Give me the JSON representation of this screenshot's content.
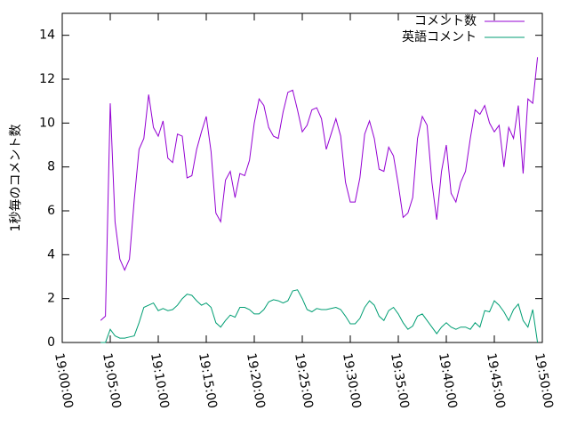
{
  "chart_data": {
    "type": "line",
    "y_label": "1秒毎のコメント数",
    "x": [
      "19:04:00",
      "19:04:30",
      "19:05:00",
      "19:05:30",
      "19:06:00",
      "19:06:30",
      "19:07:00",
      "19:07:30",
      "19:08:00",
      "19:08:30",
      "19:09:00",
      "19:09:30",
      "19:10:00",
      "19:10:30",
      "19:11:00",
      "19:11:30",
      "19:12:00",
      "19:12:30",
      "19:13:00",
      "19:13:30",
      "19:14:00",
      "19:14:30",
      "19:15:00",
      "19:15:30",
      "19:16:00",
      "19:16:30",
      "19:17:00",
      "19:17:30",
      "19:18:00",
      "19:18:30",
      "19:19:00",
      "19:19:30",
      "19:20:00",
      "19:20:30",
      "19:21:00",
      "19:21:30",
      "19:22:00",
      "19:22:30",
      "19:23:00",
      "19:23:30",
      "19:24:00",
      "19:24:30",
      "19:25:00",
      "19:25:30",
      "19:26:00",
      "19:26:30",
      "19:27:00",
      "19:27:30",
      "19:28:00",
      "19:28:30",
      "19:29:00",
      "19:29:30",
      "19:30:00",
      "19:30:30",
      "19:31:00",
      "19:31:30",
      "19:32:00",
      "19:32:30",
      "19:33:00",
      "19:33:30",
      "19:34:00",
      "19:34:30",
      "19:35:00",
      "19:35:30",
      "19:36:00",
      "19:36:30",
      "19:37:00",
      "19:37:30",
      "19:38:00",
      "19:38:30",
      "19:39:00",
      "19:39:30",
      "19:40:00",
      "19:40:30",
      "19:41:00",
      "19:41:30",
      "19:42:00",
      "19:42:30",
      "19:43:00",
      "19:43:30",
      "19:44:00",
      "19:44:30",
      "19:45:00",
      "19:45:30",
      "19:46:00",
      "19:46:30",
      "19:47:00",
      "19:47:30",
      "19:48:00",
      "19:48:30",
      "19:49:00",
      "19:49:30"
    ],
    "series": [
      {
        "name": "コメント数",
        "color": "#9400d3",
        "values": [
          1.0,
          1.2,
          10.9,
          5.5,
          3.8,
          3.3,
          3.8,
          6.5,
          8.8,
          9.3,
          11.3,
          9.8,
          9.4,
          10.1,
          8.4,
          8.2,
          9.5,
          9.4,
          7.5,
          7.6,
          8.8,
          9.6,
          10.3,
          8.7,
          5.9,
          5.5,
          7.4,
          7.8,
          6.6,
          7.7,
          7.6,
          8.3,
          10.0,
          11.1,
          10.8,
          9.8,
          9.4,
          9.3,
          10.5,
          11.4,
          11.5,
          10.6,
          9.6,
          9.9,
          10.6,
          10.7,
          10.2,
          8.8,
          9.5,
          10.2,
          9.4,
          7.3,
          6.4,
          6.4,
          7.5,
          9.5,
          10.1,
          9.3,
          7.9,
          7.8,
          8.9,
          8.5,
          7.2,
          5.7,
          5.9,
          6.6,
          9.3,
          10.3,
          9.9,
          7.3,
          5.6,
          7.8,
          9.0,
          6.8,
          6.4,
          7.3,
          7.8,
          9.3,
          10.6,
          10.4,
          10.8,
          10.0,
          9.6,
          9.9,
          8.0,
          9.8,
          9.3,
          10.8,
          7.7,
          11.1,
          10.9,
          13.0
        ]
      },
      {
        "name": "英語コメント",
        "color": "#009e73",
        "values": [
          0,
          0,
          0.6,
          0.3,
          0.2,
          0.2,
          0.25,
          0.3,
          0.9,
          1.6,
          1.7,
          1.8,
          1.45,
          1.55,
          1.45,
          1.5,
          1.7,
          2.0,
          2.2,
          2.15,
          1.9,
          1.7,
          1.8,
          1.6,
          0.9,
          0.7,
          1.0,
          1.25,
          1.15,
          1.6,
          1.6,
          1.5,
          1.3,
          1.3,
          1.5,
          1.85,
          1.95,
          1.9,
          1.8,
          1.9,
          2.35,
          2.4,
          2.0,
          1.5,
          1.4,
          1.55,
          1.5,
          1.5,
          1.55,
          1.6,
          1.5,
          1.2,
          0.85,
          0.85,
          1.1,
          1.6,
          1.9,
          1.7,
          1.2,
          1.0,
          1.45,
          1.6,
          1.3,
          0.9,
          0.6,
          0.75,
          1.2,
          1.3,
          1.0,
          0.7,
          0.4,
          0.7,
          0.9,
          0.7,
          0.6,
          0.7,
          0.7,
          0.6,
          0.9,
          0.7,
          1.45,
          1.4,
          1.9,
          1.7,
          1.4,
          1.0,
          1.5,
          1.75,
          1.0,
          0.7,
          1.5,
          0.0
        ]
      }
    ],
    "xlim": [
      "19:00:00",
      "19:50:00"
    ],
    "xticks": [
      "19:00:00",
      "19:05:00",
      "19:10:00",
      "19:15:00",
      "19:20:00",
      "19:25:00",
      "19:30:00",
      "19:35:00",
      "19:40:00",
      "19:45:00",
      "19:50:00"
    ],
    "ylim": [
      0,
      15
    ],
    "yticks": [
      0,
      2,
      4,
      6,
      8,
      10,
      12,
      14
    ],
    "grid": false,
    "legend": "top-right"
  }
}
